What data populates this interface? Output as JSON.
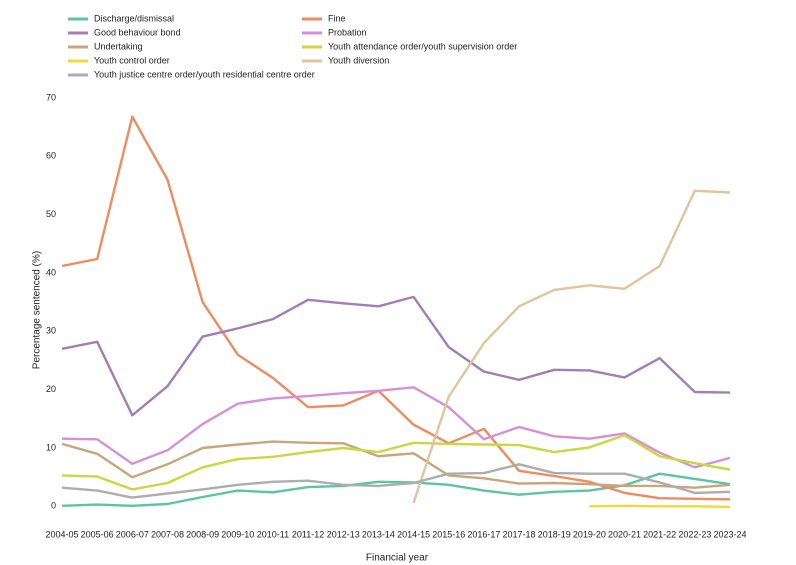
{
  "chart_data": {
    "type": "line",
    "y_label": "Percentage sentenced (%)",
    "x_label": "Financial year",
    "categories": [
      "2004-05",
      "2005-06",
      "2006-07",
      "2007-08",
      "2008-09",
      "2009-10",
      "2010-11",
      "2011-12",
      "2012-13",
      "2013-14",
      "2014-15",
      "2015-16",
      "2016-17",
      "2017-18",
      "2018-19",
      "2019-20",
      "2020-21",
      "2021-22",
      "2022-23",
      "2023-24"
    ],
    "ylim": [
      -2,
      70
    ],
    "yticks": [
      0,
      10,
      20,
      30,
      40,
      50,
      60,
      70
    ],
    "grid": false,
    "legend_position": "top",
    "series": [
      {
        "name": "Discharge/dismissal",
        "color": "#5cc5a0",
        "values": [
          0.1,
          0.3,
          0.1,
          0.4,
          1.6,
          2.7,
          2.4,
          3.3,
          3.5,
          4.2,
          4.1,
          3.7,
          2.7,
          2.0,
          2.5,
          2.7,
          3.6,
          5.6,
          4.7,
          3.8
        ]
      },
      {
        "name": "Fine",
        "color": "#ef8b5e",
        "values": [
          41.2,
          42.4,
          66.8,
          56,
          35,
          26,
          22,
          17,
          17.3,
          19.8,
          14,
          10.8,
          13.3,
          6.1,
          5.2,
          4.2,
          2.3,
          1.4,
          1.3,
          1.2
        ]
      },
      {
        "name": "Good behaviour bond",
        "color": "#a57db6",
        "values": [
          27,
          28.2,
          15.6,
          20.6,
          29.1,
          30.5,
          32.1,
          35.4,
          34.8,
          34.3,
          35.9,
          27.3,
          23.1,
          21.7,
          23.4,
          23.3,
          22.1,
          25.4,
          19.6,
          19.5
        ]
      },
      {
        "name": "Probation",
        "color": "#d690d8",
        "values": [
          11.6,
          11.5,
          7.3,
          9.6,
          14.1,
          17.6,
          18.5,
          18.9,
          19.4,
          19.8,
          20.4,
          17,
          11.5,
          13.6,
          12,
          11.6,
          12.5,
          9.2,
          6.7,
          8.3
        ]
      },
      {
        "name": "Undertaking",
        "color": "#c9a57c",
        "values": [
          10.7,
          9,
          5,
          7.2,
          10,
          10.6,
          11.1,
          10.9,
          10.8,
          8.6,
          9.1,
          5.3,
          4.8,
          3.9,
          4.0,
          3.8,
          3.5,
          3.5,
          3.2,
          3.7
        ]
      },
      {
        "name": "Youth attendance order/youth supervision order",
        "color": "#c6d93f",
        "values": [
          5.3,
          5.1,
          2.9,
          4.0,
          6.7,
          8.1,
          8.5,
          9.3,
          10.0,
          9.3,
          10.9,
          10.7,
          10.6,
          10.5,
          9.3,
          10.1,
          12.2,
          8.6,
          7.4,
          6.3
        ]
      },
      {
        "name": "Youth control order",
        "color": "#f2d83b",
        "values": [
          null,
          null,
          null,
          null,
          null,
          null,
          null,
          null,
          null,
          null,
          null,
          null,
          null,
          null,
          null,
          0.0,
          0.1,
          0.0,
          0.0,
          -0.1
        ]
      },
      {
        "name": "Youth diversion",
        "color": "#e2c39b",
        "values": [
          null,
          null,
          null,
          null,
          null,
          null,
          null,
          null,
          null,
          null,
          0.6,
          18.8,
          28,
          34.3,
          37.1,
          37.9,
          37.3,
          41.2,
          54.1,
          53.8
        ]
      },
      {
        "name": "Youth justice centre order/youth residential centre order",
        "color": "#adadad",
        "values": [
          3.2,
          2.7,
          1.5,
          2.2,
          2.9,
          3.7,
          4.2,
          4.4,
          3.7,
          3.5,
          4.0,
          5.6,
          5.7,
          7.2,
          5.7,
          5.6,
          5.6,
          4.1,
          2.3,
          2.5
        ]
      }
    ]
  }
}
